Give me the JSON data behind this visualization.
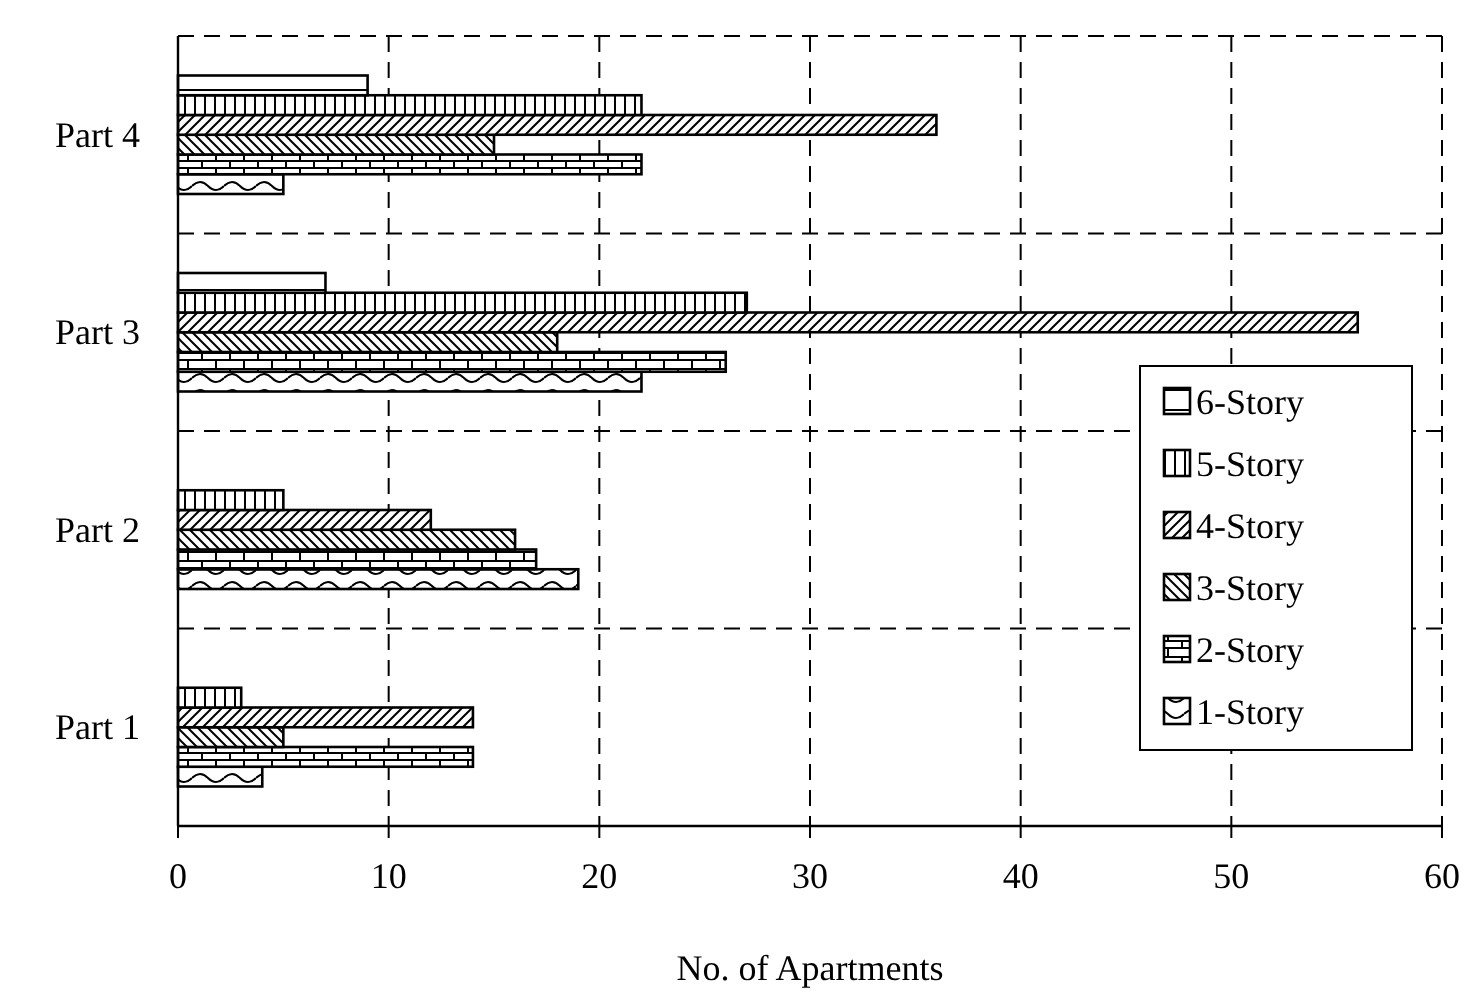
{
  "chart_data": {
    "type": "bar",
    "orientation": "horizontal",
    "xlabel": "No. of Apartments",
    "categories": [
      "Part 4",
      "Part 3",
      "Part 2",
      "Part 1"
    ],
    "series": [
      {
        "name": "1-Story",
        "color": "#000000",
        "values": [
          5,
          22,
          19,
          4
        ]
      },
      {
        "name": "2-Story",
        "color": "#000000",
        "values": [
          22,
          26,
          17,
          14
        ]
      },
      {
        "name": "3-Story",
        "color": "#000000",
        "values": [
          15,
          18,
          16,
          5
        ]
      },
      {
        "name": "4-Story",
        "color": "#000000",
        "values": [
          36,
          56,
          12,
          14
        ]
      },
      {
        "name": "5-Story",
        "color": "#000000",
        "values": [
          22,
          27,
          5,
          3
        ]
      },
      {
        "name": "6-Story",
        "color": "#000000",
        "values": [
          9,
          7,
          0,
          0
        ]
      }
    ],
    "xlim": [
      0,
      60
    ],
    "xticks": [
      0,
      10,
      20,
      30,
      40,
      50,
      60
    ],
    "grid": true,
    "legend": "right"
  }
}
